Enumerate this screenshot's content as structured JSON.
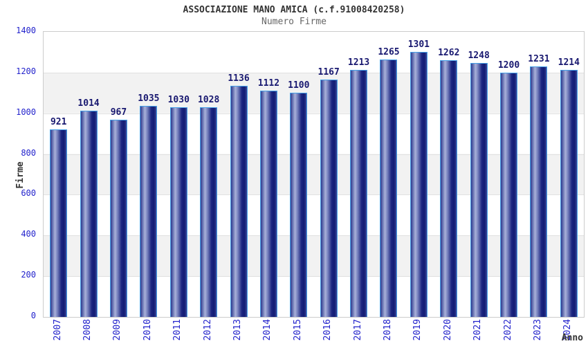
{
  "header": {
    "title": "ASSOCIAZIONE MANO AMICA (c.f.91008420258)",
    "subtitle": "Numero Firme"
  },
  "chart_data": {
    "type": "bar",
    "title": "ASSOCIAZIONE MANO AMICA (c.f.91008420258)",
    "subtitle": "Numero Firme",
    "xlabel": "Anno",
    "ylabel": "Firme",
    "categories": [
      "2007",
      "2008",
      "2009",
      "2010",
      "2011",
      "2012",
      "2013",
      "2014",
      "2015",
      "2016",
      "2017",
      "2018",
      "2019",
      "2020",
      "2021",
      "2022",
      "2023",
      "2024"
    ],
    "values": [
      921,
      1014,
      967,
      1035,
      1030,
      1028,
      1136,
      1112,
      1100,
      1167,
      1213,
      1265,
      1301,
      1262,
      1248,
      1200,
      1231,
      1214
    ],
    "ylim": [
      0,
      1400
    ],
    "ytick_step": 200,
    "grid": true,
    "legend": "none",
    "band_colors": [
      "#ffffff",
      "#f2f2f2"
    ],
    "colors": {
      "bar_border": "#44a0e8",
      "bar_dark": "#1b2580",
      "bar_light": "#a9b1d9",
      "tick_label": "#2222cc",
      "value_label": "#181870",
      "gridline": "#e0e0e0",
      "plot_border": "#cccccc",
      "title": "#333333",
      "subtitle": "#666666"
    }
  }
}
